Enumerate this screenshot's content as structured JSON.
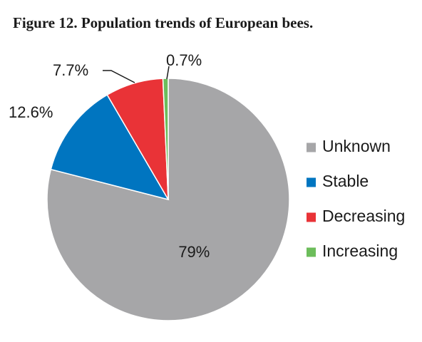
{
  "chart_data": {
    "type": "pie",
    "title": "Figure 12. Population trends of European bees.",
    "slices": [
      {
        "label": "Unknown",
        "value": 79,
        "value_label": "79%",
        "color": "#A6A6A8"
      },
      {
        "label": "Stable",
        "value": 12.6,
        "value_label": "12.6%",
        "color": "#0075C0"
      },
      {
        "label": "Decreasing",
        "value": 7.7,
        "value_label": "7.7%",
        "color": "#E93337"
      },
      {
        "label": "Increasing",
        "value": 0.7,
        "value_label": "0.7%",
        "color": "#6CBD5B"
      }
    ],
    "legend_position": "right",
    "start_angle": "12 o'clock",
    "direction": "clockwise"
  }
}
